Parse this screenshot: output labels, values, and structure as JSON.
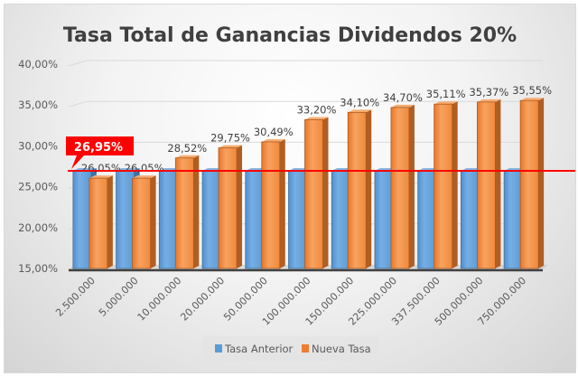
{
  "chart_data": {
    "type": "bar",
    "title": "Tasa Total de Ganancias Dividendos 20%",
    "xlabel": "",
    "ylabel": "",
    "ylim": [
      15,
      40
    ],
    "yticks": [
      "15,00%",
      "20,00%",
      "25,00%",
      "30,00%",
      "35,00%",
      "40,00%"
    ],
    "ytick_values": [
      15,
      20,
      25,
      30,
      35,
      40
    ],
    "grid": true,
    "categories": [
      "2.500.000",
      "5.000.000",
      "10.000.000",
      "20.000.000",
      "50.000.000",
      "100.000.000",
      "150.000.000",
      "225.000.000",
      "337.500.000",
      "500.000.000",
      "750.000.000"
    ],
    "series": [
      {
        "name": "Tasa Anterior",
        "color": "#5b9bd5",
        "values": [
          26.95,
          26.95,
          26.95,
          26.95,
          26.95,
          26.95,
          26.95,
          26.95,
          26.95,
          26.95,
          26.95
        ]
      },
      {
        "name": "Nueva Tasa",
        "color": "#ed7d31",
        "values": [
          26.05,
          26.05,
          28.52,
          29.75,
          30.49,
          33.2,
          34.1,
          34.7,
          35.11,
          35.37,
          35.55
        ],
        "labels": [
          "26,05%",
          "26,05%",
          "28,52%",
          "29,75%",
          "30,49%",
          "33,20%",
          "34,10%",
          "34,70%",
          "35,11%",
          "35,37%",
          "35,55%"
        ]
      }
    ],
    "reference_line": {
      "value": 26.95,
      "label": "26,95%",
      "color": "#ff0000"
    },
    "legend": {
      "position": "bottom",
      "entries": [
        "Tasa Anterior",
        "Nueva Tasa"
      ]
    }
  }
}
